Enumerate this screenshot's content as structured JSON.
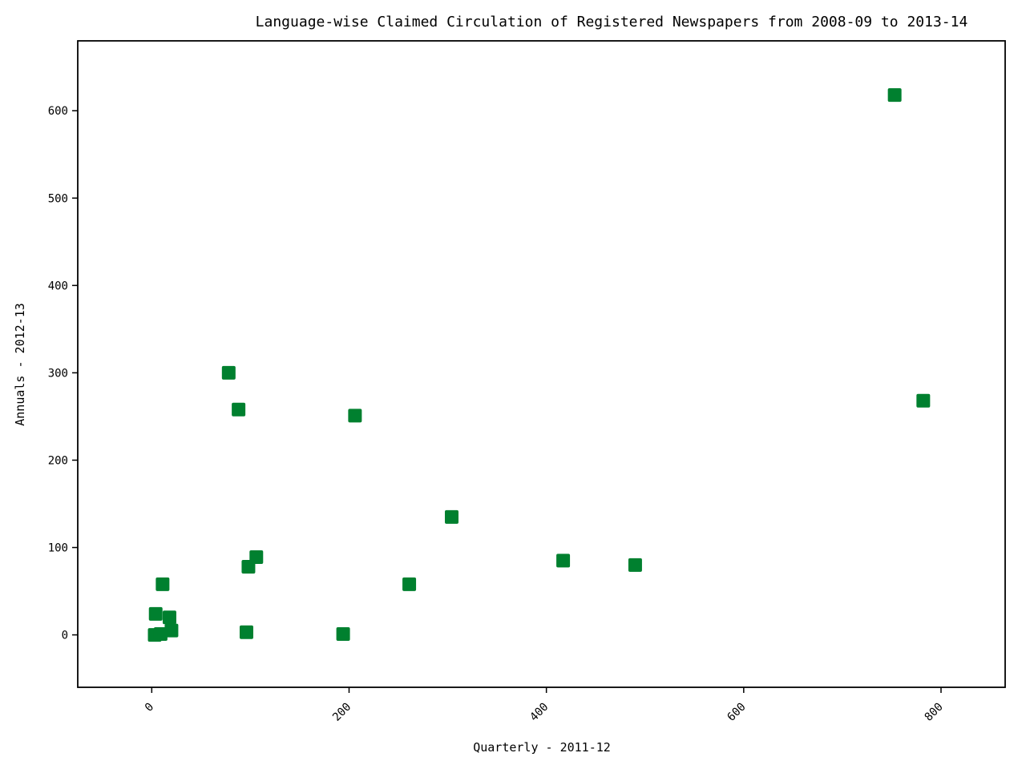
{
  "chart_data": {
    "type": "scatter",
    "title": "Language-wise Claimed Circulation of Registered Newspapers from 2008-09 to 2013-14",
    "xlabel": "Quarterly - 2011-12",
    "ylabel": "Annuals - 2012-13",
    "xlim": [
      -75,
      865
    ],
    "ylim": [
      -60,
      680
    ],
    "xticks": [
      0,
      200,
      400,
      600,
      800
    ],
    "yticks": [
      0,
      100,
      200,
      300,
      400,
      500,
      600
    ],
    "xtick_labels": [
      "0",
      "200",
      "400",
      "600",
      "800"
    ],
    "ytick_labels": [
      "0",
      "100",
      "200",
      "300",
      "400",
      "500",
      "600"
    ],
    "grid": false,
    "marker_color": "#00802f",
    "marker_shape": "square",
    "points": [
      {
        "x": 753,
        "y": 618
      },
      {
        "x": 782,
        "y": 268
      },
      {
        "x": 78,
        "y": 300
      },
      {
        "x": 88,
        "y": 258
      },
      {
        "x": 206,
        "y": 251
      },
      {
        "x": 304,
        "y": 135
      },
      {
        "x": 106,
        "y": 89
      },
      {
        "x": 417,
        "y": 85
      },
      {
        "x": 98,
        "y": 78
      },
      {
        "x": 490,
        "y": 80
      },
      {
        "x": 11,
        "y": 58
      },
      {
        "x": 261,
        "y": 58
      },
      {
        "x": 4,
        "y": 24
      },
      {
        "x": 18,
        "y": 20
      },
      {
        "x": 20,
        "y": 5
      },
      {
        "x": 96,
        "y": 3
      },
      {
        "x": 194,
        "y": 1
      },
      {
        "x": 3,
        "y": 0
      },
      {
        "x": 9,
        "y": 1
      }
    ]
  }
}
